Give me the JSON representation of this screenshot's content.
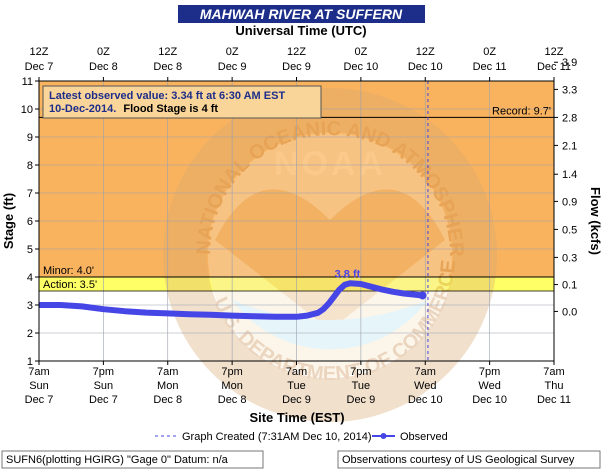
{
  "colors": {
    "title_bar": "#1d2d8a",
    "title_text": "#ffffff",
    "flood_zone": "#f9b35f",
    "action_zone": "#ffff66",
    "normal_zone": "#ffffff",
    "observed_line": "#4646e6",
    "note_bg": "#f9d59a",
    "note_text": "#1d2d8a",
    "grid": "#9aa0b0"
  },
  "chart_data": {
    "type": "line",
    "title": "MAHWAH RIVER AT SUFFERN",
    "top_axis_label": "Universal Time (UTC)",
    "top_ticks": [
      {
        "hour": 0,
        "time": "12Z",
        "day": "Dec 7"
      },
      {
        "hour": 12,
        "time": "0Z",
        "day": "Dec 8"
      },
      {
        "hour": 24,
        "time": "12Z",
        "day": "Dec 8"
      },
      {
        "hour": 36,
        "time": "0Z",
        "day": "Dec 9"
      },
      {
        "hour": 48,
        "time": "12Z",
        "day": "Dec 9"
      },
      {
        "hour": 60,
        "time": "0Z",
        "day": "Dec 10"
      },
      {
        "hour": 72,
        "time": "12Z",
        "day": "Dec 10"
      },
      {
        "hour": 84,
        "time": "0Z",
        "day": "Dec 11"
      },
      {
        "hour": 96,
        "time": "12Z",
        "day": "Dec 11"
      }
    ],
    "bottom_axis_label": "Site Time (EST)",
    "bottom_ticks": [
      {
        "hour": 0,
        "time": "7am",
        "dow": "Sun",
        "day": "Dec 7"
      },
      {
        "hour": 12,
        "time": "7pm",
        "dow": "Sun",
        "day": "Dec 7"
      },
      {
        "hour": 24,
        "time": "7am",
        "dow": "Mon",
        "day": "Dec 8"
      },
      {
        "hour": 36,
        "time": "7pm",
        "dow": "Mon",
        "day": "Dec 8"
      },
      {
        "hour": 48,
        "time": "7am",
        "dow": "Tue",
        "day": "Dec 9"
      },
      {
        "hour": 60,
        "time": "7pm",
        "dow": "Tue",
        "day": "Dec 9"
      },
      {
        "hour": 72,
        "time": "7am",
        "dow": "Wed",
        "day": "Dec 10"
      },
      {
        "hour": 84,
        "time": "7pm",
        "dow": "Wed",
        "day": "Dec 10"
      },
      {
        "hour": 96,
        "time": "7am",
        "dow": "Thu",
        "day": "Dec 11"
      }
    ],
    "xlim": [
      0,
      96
    ],
    "ylabel": "Stage (ft)",
    "ylim": [
      1,
      11
    ],
    "y_ticks": [
      1,
      2,
      3,
      4,
      5,
      6,
      7,
      8,
      9,
      10,
      11
    ],
    "y2label": "Flow (kcfs)",
    "y2_ticks": [
      {
        "stage": 2.77,
        "label": "0.0"
      },
      {
        "stage": 3.73,
        "label": "0.1"
      },
      {
        "stage": 4.7,
        "label": "0.3"
      },
      {
        "stage": 5.7,
        "label": "0.5"
      },
      {
        "stage": 6.7,
        "label": "0.9"
      },
      {
        "stage": 7.67,
        "label": "1.4"
      },
      {
        "stage": 8.7,
        "label": "2.1"
      },
      {
        "stage": 9.7,
        "label": "2.8"
      },
      {
        "stage": 10.7,
        "label": "3.3"
      },
      {
        "stage": 11.67,
        "label": "3.9"
      }
    ],
    "thresholds": {
      "record": {
        "value": 9.7,
        "label": "Record: 9.7'"
      },
      "minor": {
        "value": 4.0,
        "label": "Minor: 4.0'"
      },
      "action": {
        "value": 3.5,
        "label": "Action: 3.5'"
      }
    },
    "graph_created_hour": 72.5,
    "peak": {
      "hour": 57.5,
      "value": 3.8,
      "label": "3.8 ft"
    },
    "series": [
      {
        "name": "Observed",
        "x": [
          0,
          4,
          8,
          12,
          16,
          20,
          24,
          28,
          32,
          36,
          40,
          44,
          48,
          50,
          52,
          53,
          54,
          55,
          56,
          57,
          58,
          60,
          62,
          64,
          66,
          68,
          70,
          71.5
        ],
        "y": [
          3.0,
          3.0,
          2.95,
          2.85,
          2.78,
          2.73,
          2.7,
          2.67,
          2.65,
          2.62,
          2.6,
          2.58,
          2.58,
          2.62,
          2.72,
          2.85,
          3.05,
          3.3,
          3.55,
          3.72,
          3.78,
          3.75,
          3.65,
          3.55,
          3.47,
          3.41,
          3.37,
          3.34
        ]
      }
    ],
    "note_line1": "Latest observed value: 3.34 ft at 6:30 AM EST",
    "note_line2_a": "10-Dec-2014.",
    "note_line2_b": "Flood Stage is 4 ft",
    "legend": {
      "graph_created": "Graph Created (7:31AM Dec 10, 2014)",
      "observed": "Observed"
    }
  },
  "footer": {
    "left": "SUFN6(plotting HGIRG) \"Gage 0\" Datum: n/a",
    "right": "Observations courtesy of US Geological Survey"
  },
  "watermark": {
    "logo_text": "NOAA",
    "ring_top": "NATIONAL OCEANIC AND ATMOSPHERIC ADMINISTRATION",
    "ring_bottom": "U.S. DEPARTMENT OF COMMERCE"
  }
}
